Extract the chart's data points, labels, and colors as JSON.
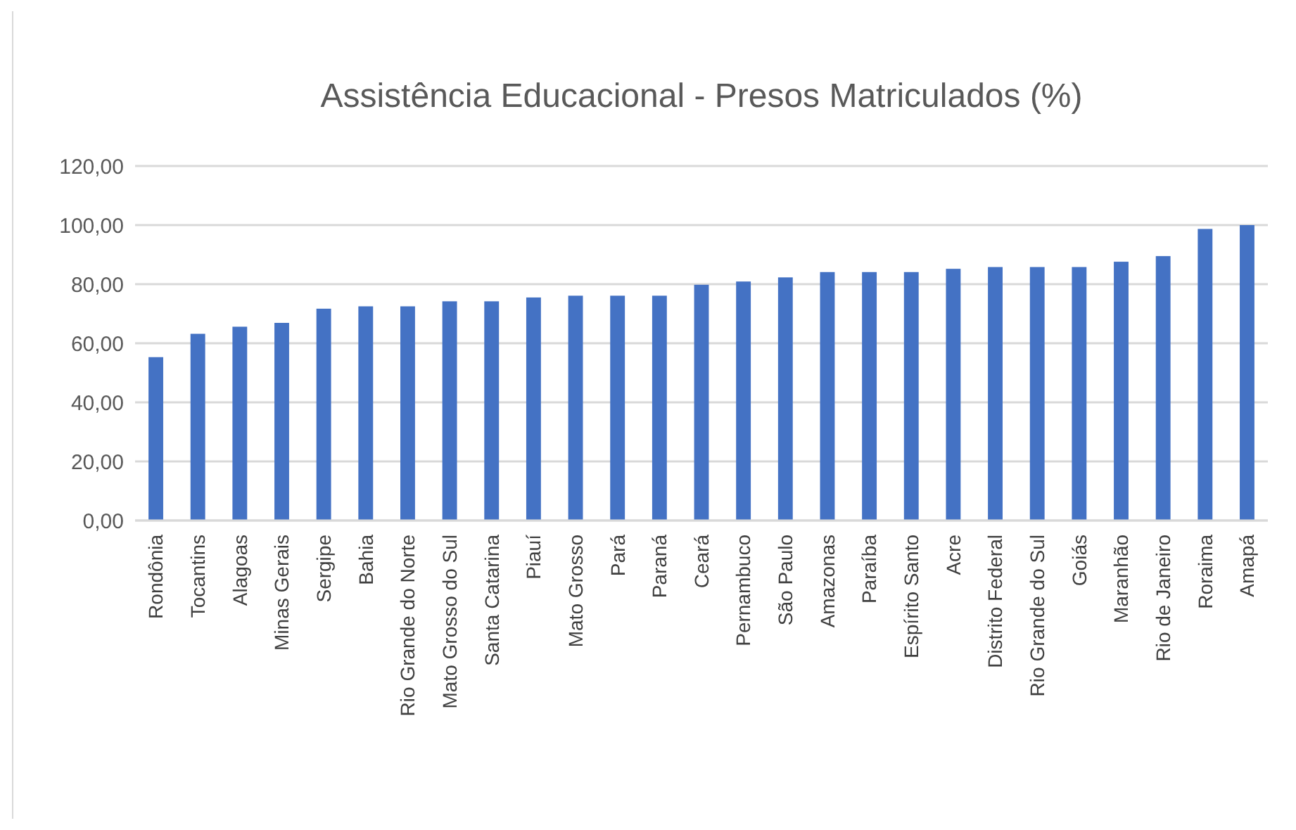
{
  "chart_data": {
    "type": "bar",
    "title": "Assistência Educacional - Presos Matriculados (%)",
    "categories": [
      "Rondônia",
      "Tocantins",
      "Alagoas",
      "Minas Gerais",
      "Sergipe",
      "Bahia",
      "Rio Grande do Norte",
      "Mato Grosso do Sul",
      "Santa Catarina",
      "Piauí",
      "Mato Grosso",
      "Pará",
      "Paraná",
      "Ceará",
      "Pernambuco",
      "São Paulo",
      "Amazonas",
      "Paraíba",
      "Espírito Santo",
      "Acre",
      "Distrito Federal",
      "Rio Grande do Sul",
      "Goiás",
      "Maranhão",
      "Rio de Janeiro",
      "Roraima",
      "Amapá"
    ],
    "values": [
      55.3,
      63.2,
      65.6,
      66.9,
      71.7,
      72.5,
      72.5,
      74.2,
      74.2,
      75.5,
      76.1,
      76.1,
      76.1,
      79.8,
      80.9,
      82.3,
      84.1,
      84.1,
      84.1,
      85.2,
      85.8,
      85.8,
      85.8,
      87.6,
      89.5,
      98.7,
      100
    ],
    "color": "#4472c4",
    "ylim": [
      0,
      120
    ],
    "yticks": [
      {
        "value": 0,
        "label": "0,00"
      },
      {
        "value": 20,
        "label": "20,00"
      },
      {
        "value": 40,
        "label": "40,00"
      },
      {
        "value": 60,
        "label": "60,00"
      },
      {
        "value": 80,
        "label": "80,00"
      },
      {
        "value": 100,
        "label": "100,00"
      },
      {
        "value": 120,
        "label": "120,00"
      }
    ],
    "grid": "y"
  }
}
